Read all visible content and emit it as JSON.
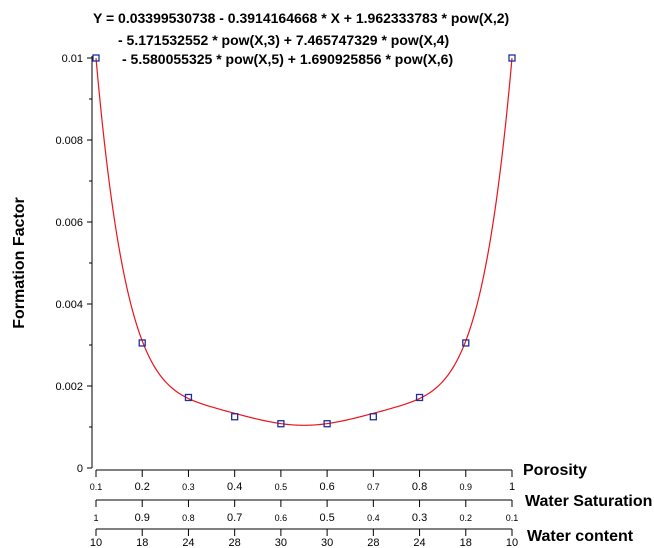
{
  "chart_data": {
    "type": "scatter",
    "title_lines": [
      "Y = 0.03399530738 - 0.3914164668 * X + 1.962333783 * pow(X,2)",
      "- 5.171532552 * pow(X,3) + 7.465747329 * pow(X,4)",
      "- 5.580055325 * pow(X,5) + 1.690925856 * pow(X,6)"
    ],
    "ylabel": "Formation Factor",
    "ylim": [
      0,
      0.01
    ],
    "y_ticks": [
      "0",
      "0.002",
      "0.004",
      "0.006",
      "0.008",
      "0.01"
    ],
    "y_tick_values": [
      0,
      0.002,
      0.004,
      0.006,
      0.008,
      0.01
    ],
    "xlim": [
      0.1,
      1.0
    ],
    "x_axes": [
      {
        "label": "Porosity",
        "ticks": [
          "0.1",
          "0.2",
          "0.3",
          "0.4",
          "0.5",
          "0.6",
          "0.7",
          "0.8",
          "0.9",
          "1"
        ]
      },
      {
        "label": "Water Saturation",
        "ticks": [
          "1",
          "0.9",
          "0.8",
          "0.7",
          "0.6",
          "0.5",
          "0.4",
          "0.3",
          "0.2",
          "0.1"
        ]
      },
      {
        "label": "Water content",
        "ticks": [
          "10",
          "18",
          "24",
          "28",
          "30",
          "30",
          "28",
          "24",
          "18",
          "10"
        ]
      }
    ],
    "series": [
      {
        "type": "scatter",
        "marker": "square",
        "color": "#1f2f9f",
        "x": [
          0.1,
          0.2,
          0.3,
          0.4,
          0.5,
          0.6,
          0.7,
          0.8,
          0.9,
          1.0
        ],
        "y": [
          0.01,
          0.00305,
          0.00172,
          0.00125,
          0.00108,
          0.00108,
          0.00125,
          0.00172,
          0.00305,
          0.01
        ]
      },
      {
        "type": "line",
        "color": "#e8141b",
        "coefficients": [
          0.03399530738,
          -0.3914164668,
          1.962333783,
          -5.171532552,
          7.465747329,
          -5.580055325,
          1.690925856
        ]
      }
    ],
    "grid": false,
    "legend": "none"
  }
}
